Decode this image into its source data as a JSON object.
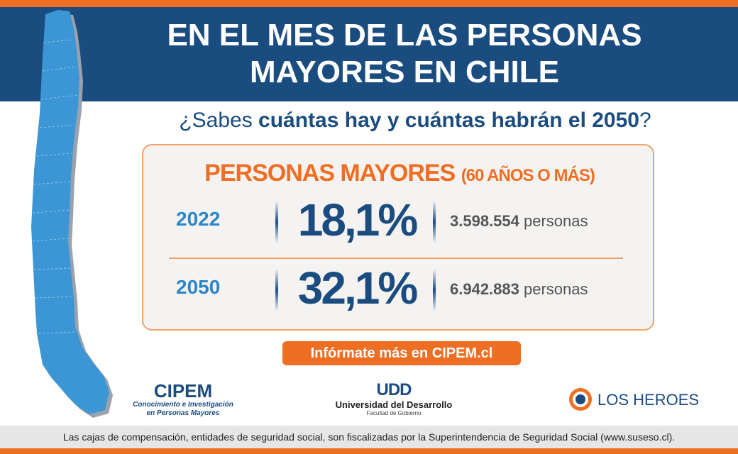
{
  "header": {
    "title_line1": "EN EL MES DE LAS PERSONAS",
    "title_line2": "MAYORES EN CHILE"
  },
  "subtitle": {
    "prefix": "¿Sabes ",
    "bold": "cuántas hay y cuántas habrán el 2050",
    "suffix": "?"
  },
  "card": {
    "title": "PERSONAS MAYORES",
    "title_sub": "(60 AÑOS O MÁS)",
    "rows": [
      {
        "year": "2022",
        "percent": "18,1%",
        "count": "3.598.554",
        "unit": "personas"
      },
      {
        "year": "2050",
        "percent": "32,1%",
        "count": "6.942.883",
        "unit": "personas"
      }
    ]
  },
  "cta": {
    "label": "Infórmate más en CIPEM.cl"
  },
  "logos": {
    "cipem": {
      "name": "CIPEM",
      "tagline_line1": "Conocimiento e Investigación",
      "tagline_line2": "en Personas Mayores"
    },
    "udd": {
      "mark": "UDD",
      "name": "Universidad del Desarrollo",
      "faculty": "Facultad de Gobierno"
    },
    "losheroes": {
      "name": "LOS HEROES"
    }
  },
  "footer": {
    "text": "Las cajas de compensación, entidades de seguridad social, son fiscalizadas por la Superintendencia de Seguridad Social (www.suseso.cl)."
  },
  "colors": {
    "brand_blue": "#1b4c80",
    "accent_orange": "#ee6f24",
    "year_blue": "#2d86c6",
    "map_blue": "#3c95d4"
  },
  "icons": {
    "map": "chile-map-icon",
    "losheroes_logo": "los-heroes-logo-icon"
  }
}
